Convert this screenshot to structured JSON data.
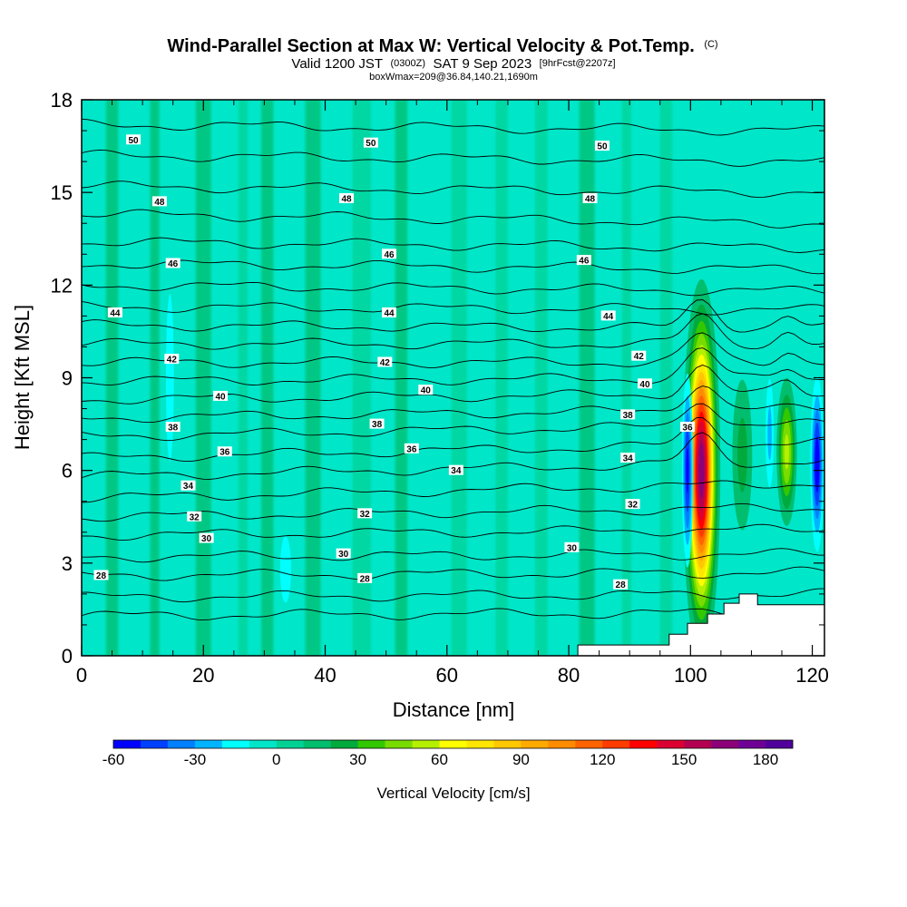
{
  "header": {
    "title": "Wind-Parallel Section at Max W: Vertical Velocity & Pot.Temp.",
    "title_suffix": "(C)",
    "subtitle_valid": "Valid 1200 JST",
    "subtitle_utc": "(0300Z)",
    "subtitle_date": "SAT 9 Sep 2023",
    "subtitle_fcst": "[9hrFcst@2207z]",
    "subtitle_box": "boxWmax=209@36.84,140.21,1690m"
  },
  "chart_data": {
    "type": "heatmap",
    "xlabel": "Distance [nm]",
    "ylabel": "Height [Kft MSL]",
    "xlim": [
      0,
      122
    ],
    "ylim": [
      0,
      18
    ],
    "x_ticks": [
      "0",
      "20",
      "40",
      "60",
      "80",
      "100",
      "120"
    ],
    "y_ticks": [
      "0",
      "3",
      "6",
      "9",
      "12",
      "15",
      "18"
    ],
    "colorbar": {
      "title": "Vertical Velocity [cm/s]",
      "min": -60,
      "max": 190,
      "step": 10,
      "tick_labels": [
        "-60",
        "-30",
        "0",
        "30",
        "60",
        "90",
        "120",
        "150",
        "180"
      ],
      "colors": [
        "#0000ff",
        "#0040ff",
        "#0080ff",
        "#00b4ff",
        "#00ffff",
        "#00e6c8",
        "#00d296",
        "#00be6e",
        "#00aa3c",
        "#32c800",
        "#78dc00",
        "#b4f000",
        "#ffff00",
        "#ffe600",
        "#ffc800",
        "#ffaa00",
        "#ff8c00",
        "#ff6400",
        "#ff3c00",
        "#ff0000",
        "#dc0032",
        "#b40050",
        "#8c0078",
        "#6e0096",
        "#50009b"
      ]
    },
    "theta_contours": [
      {
        "value": 28,
        "h_start": 1.3,
        "h_end": 1.4
      },
      {
        "value": 29,
        "h_start": 1.9,
        "h_end": 2.0
      },
      {
        "value": 30,
        "h_start": 2.6,
        "h_end": 2.7
      },
      {
        "value": 31,
        "h_start": 3.2,
        "h_end": 3.3
      },
      {
        "value": 32,
        "h_start": 3.9,
        "h_end": 4.1
      },
      {
        "value": 33,
        "h_start": 4.5,
        "h_end": 4.8
      },
      {
        "value": 34,
        "h_start": 5.1,
        "h_end": 5.6
      },
      {
        "value": 35,
        "h_start": 5.8,
        "h_end": 6.3
      },
      {
        "value": 36,
        "h_start": 6.4,
        "h_end": 6.9
      },
      {
        "value": 37,
        "h_start": 7.1,
        "h_end": 7.5
      },
      {
        "value": 38,
        "h_start": 7.7,
        "h_end": 8.0
      },
      {
        "value": 39,
        "h_start": 8.3,
        "h_end": 8.5
      },
      {
        "value": 40,
        "h_start": 8.9,
        "h_end": 9.0
      },
      {
        "value": 41,
        "h_start": 9.5,
        "h_end": 9.5
      },
      {
        "value": 42,
        "h_start": 10.1,
        "h_end": 10.1
      },
      {
        "value": 43,
        "h_start": 10.7,
        "h_end": 10.6
      },
      {
        "value": 44,
        "h_start": 11.3,
        "h_end": 11.2
      },
      {
        "value": 45,
        "h_start": 12.0,
        "h_end": 11.8
      },
      {
        "value": 46,
        "h_start": 12.7,
        "h_end": 12.5
      },
      {
        "value": 47,
        "h_start": 13.4,
        "h_end": 13.2
      },
      {
        "value": 48,
        "h_start": 14.3,
        "h_end": 14.0
      },
      {
        "value": 49,
        "h_start": 15.2,
        "h_end": 15.0
      },
      {
        "value": 50,
        "h_start": 16.2,
        "h_end": 16.0
      },
      {
        "value": 51,
        "h_start": 17.2,
        "h_end": 17.0
      }
    ],
    "contour_labels": [
      {
        "text": "50",
        "x": 8.5,
        "y": 16.7
      },
      {
        "text": "50",
        "x": 47.5,
        "y": 16.6
      },
      {
        "text": "50",
        "x": 85.5,
        "y": 16.5
      },
      {
        "text": "48",
        "x": 12.8,
        "y": 14.7
      },
      {
        "text": "48",
        "x": 43.5,
        "y": 14.8
      },
      {
        "text": "48",
        "x": 83.5,
        "y": 14.8
      },
      {
        "text": "46",
        "x": 15.0,
        "y": 12.7
      },
      {
        "text": "46",
        "x": 50.5,
        "y": 13.0
      },
      {
        "text": "46",
        "x": 82.5,
        "y": 12.8
      },
      {
        "text": "44",
        "x": 5.5,
        "y": 11.1
      },
      {
        "text": "44",
        "x": 50.5,
        "y": 11.1
      },
      {
        "text": "44",
        "x": 86.5,
        "y": 11.0
      },
      {
        "text": "42",
        "x": 14.8,
        "y": 9.6
      },
      {
        "text": "42",
        "x": 49.8,
        "y": 9.5
      },
      {
        "text": "42",
        "x": 91.5,
        "y": 9.7
      },
      {
        "text": "40",
        "x": 22.8,
        "y": 8.4
      },
      {
        "text": "40",
        "x": 56.5,
        "y": 8.6
      },
      {
        "text": "40",
        "x": 92.5,
        "y": 8.8
      },
      {
        "text": "38",
        "x": 15.0,
        "y": 7.4
      },
      {
        "text": "38",
        "x": 48.5,
        "y": 7.5
      },
      {
        "text": "38",
        "x": 89.7,
        "y": 7.8
      },
      {
        "text": "36",
        "x": 23.5,
        "y": 6.6
      },
      {
        "text": "36",
        "x": 54.2,
        "y": 6.7
      },
      {
        "text": "36",
        "x": 99.5,
        "y": 7.4
      },
      {
        "text": "34",
        "x": 17.5,
        "y": 5.5
      },
      {
        "text": "34",
        "x": 61.5,
        "y": 6.0
      },
      {
        "text": "34",
        "x": 89.7,
        "y": 6.4
      },
      {
        "text": "32",
        "x": 18.5,
        "y": 4.5
      },
      {
        "text": "32",
        "x": 46.5,
        "y": 4.6
      },
      {
        "text": "32",
        "x": 90.5,
        "y": 4.9
      },
      {
        "text": "30",
        "x": 20.5,
        "y": 3.8
      },
      {
        "text": "30",
        "x": 43.0,
        "y": 3.3
      },
      {
        "text": "30",
        "x": 80.5,
        "y": 3.5
      },
      {
        "text": "28",
        "x": 3.2,
        "y": 2.6
      },
      {
        "text": "28",
        "x": 46.5,
        "y": 2.5
      },
      {
        "text": "28",
        "x": 88.5,
        "y": 2.3
      }
    ],
    "updraft_cores": [
      {
        "x": 101.8,
        "y": 6.0,
        "peak": 170,
        "sx": 1.3,
        "sy": 2.6
      },
      {
        "x": 115.8,
        "y": 6.6,
        "peak": 55,
        "sx": 0.9,
        "sy": 1.3
      },
      {
        "x": 108.5,
        "y": 6.5,
        "peak": 25,
        "sx": 1.2,
        "sy": 1.8
      }
    ],
    "downdraft_cores": [
      {
        "x": 99.5,
        "y": 6.0,
        "peak": -55,
        "sx": 0.5,
        "sy": 1.7
      },
      {
        "x": 120.8,
        "y": 6.2,
        "peak": -60,
        "sx": 0.6,
        "sy": 1.5
      },
      {
        "x": 113.0,
        "y": 7.2,
        "peak": -25,
        "sx": 0.5,
        "sy": 1.3
      },
      {
        "x": 105.0,
        "y": 6.5,
        "peak": -10,
        "sx": 0.6,
        "sy": 1.8
      },
      {
        "x": 14.5,
        "y": 9.0,
        "peak": -18,
        "sx": 0.6,
        "sy": 2.5
      },
      {
        "x": 33.5,
        "y": 2.8,
        "peak": -15,
        "sx": 1.0,
        "sy": 1.2
      }
    ],
    "background_bands": [
      {
        "x": 5.0,
        "width": 2.0,
        "value": 10
      },
      {
        "x": 12.0,
        "width": 1.5,
        "value": 10
      },
      {
        "x": 20.0,
        "width": 2.5,
        "value": 12
      },
      {
        "x": 26.5,
        "width": 1.5,
        "value": 8
      },
      {
        "x": 30.5,
        "width": 2.0,
        "value": 10
      },
      {
        "x": 38.0,
        "width": 2.5,
        "value": 11
      },
      {
        "x": 46.0,
        "width": 3.0,
        "value": 9
      },
      {
        "x": 52.5,
        "width": 2.0,
        "value": 10
      },
      {
        "x": 62.0,
        "width": 2.5,
        "value": 9
      },
      {
        "x": 69.0,
        "width": 2.0,
        "value": 8
      },
      {
        "x": 75.5,
        "width": 2.0,
        "value": 8
      },
      {
        "x": 83.0,
        "width": 2.5,
        "value": 11
      },
      {
        "x": 89.5,
        "width": 1.5,
        "value": 9
      },
      {
        "x": 96.0,
        "width": 2.0,
        "value": 6
      }
    ],
    "terrain": [
      [
        0,
        0
      ],
      [
        81.5,
        0
      ],
      [
        81.5,
        0.35
      ],
      [
        96.5,
        0.35
      ],
      [
        96.5,
        0.7
      ],
      [
        99.5,
        0.7
      ],
      [
        99.5,
        1.05
      ],
      [
        102.8,
        1.05
      ],
      [
        102.8,
        1.35
      ],
      [
        105.5,
        1.35
      ],
      [
        105.5,
        1.7
      ],
      [
        108.0,
        1.7
      ],
      [
        108.0,
        2.0
      ],
      [
        111.0,
        2.0
      ],
      [
        111.0,
        1.65
      ],
      [
        122,
        1.65
      ],
      [
        122,
        0
      ]
    ]
  }
}
